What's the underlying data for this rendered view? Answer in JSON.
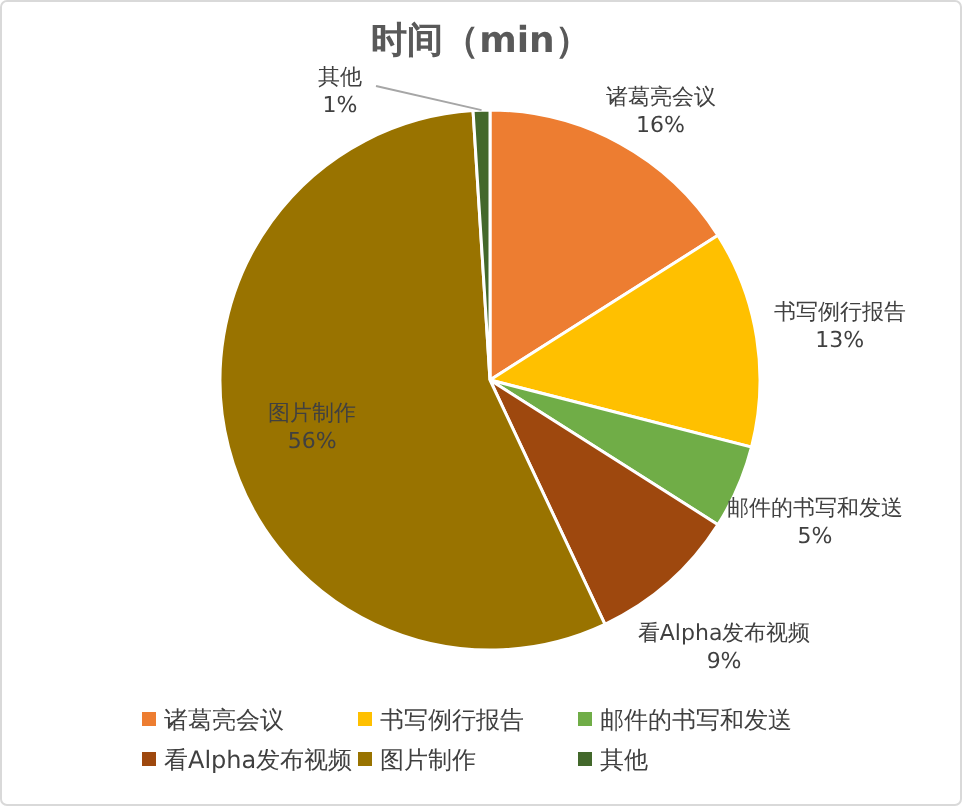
{
  "chart_data": {
    "type": "pie",
    "title": "时间（min）",
    "categories": [
      "诸葛亮会议",
      "书写例行报告",
      "邮件的书写和发送",
      "看Alpha发布视频",
      "图片制作",
      "其他"
    ],
    "values": [
      16,
      13,
      5,
      9,
      56,
      1
    ],
    "value_labels": [
      "16%",
      "13%",
      "5%",
      "9%",
      "56%",
      "1%"
    ],
    "colors": [
      "#ed7d31",
      "#ffc000",
      "#70ad47",
      "#9e480e",
      "#997300",
      "#43682b"
    ],
    "legend": "bottom"
  }
}
